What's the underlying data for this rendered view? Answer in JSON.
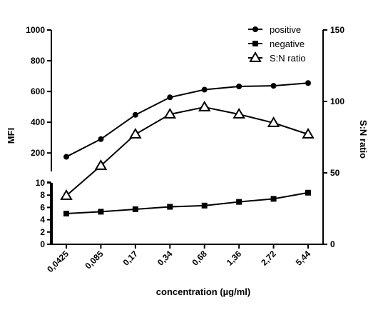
{
  "chart_data": {
    "type": "line",
    "categories": [
      "0,0425",
      "0,085",
      "0,17",
      "0,34",
      "0,68",
      "1,36",
      "2,72",
      "5,44"
    ],
    "xlabel": "concentration (µg/ml)",
    "ylabel": "MFI",
    "y2label": "S:N ratio",
    "y_axis_segments": [
      {
        "range": [
          0,
          10
        ],
        "ticks": [
          0,
          2,
          4,
          6,
          8,
          10
        ]
      },
      {
        "range": [
          80,
          1000
        ],
        "ticks": [
          200,
          400,
          600,
          800,
          1000
        ]
      }
    ],
    "y2lim": [
      0,
      150
    ],
    "y2ticks": [
      0,
      50,
      100,
      150
    ],
    "legend_position": "top-right",
    "grid": false,
    "series": [
      {
        "name": "positive",
        "axis": "left-upper",
        "marker": "filled-circle",
        "values": [
          175,
          290,
          448,
          562,
          612,
          633,
          637,
          655
        ]
      },
      {
        "name": "negative",
        "axis": "left-lower",
        "marker": "filled-square",
        "values": [
          5.0,
          5.3,
          5.7,
          6.1,
          6.3,
          6.9,
          7.4,
          8.4
        ]
      },
      {
        "name": "S:N ratio",
        "axis": "right",
        "marker": "open-triangle",
        "values": [
          34,
          55,
          77,
          91,
          96,
          91,
          85,
          77
        ]
      }
    ]
  }
}
